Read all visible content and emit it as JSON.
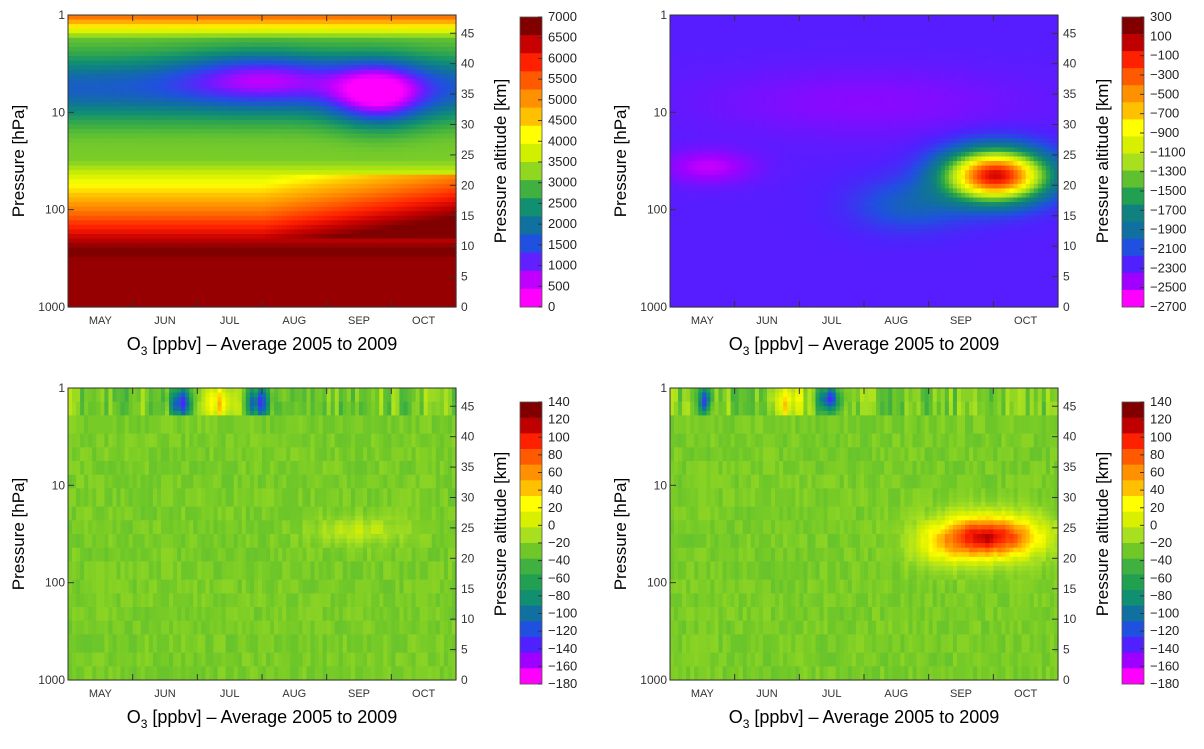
{
  "chart_data": [
    {
      "type": "heatmap",
      "panel": "top-left",
      "title_parts": {
        "species": "O",
        "subscript": "3",
        "rest": " [ppbv] – Average 2005 to 2009"
      },
      "ylabel": "Pressure [hPa]",
      "ylabel_right": "Pressure  altitude [km]",
      "x_categories": [
        "MAY",
        "JUN",
        "JUL",
        "AUG",
        "SEP",
        "OCT"
      ],
      "y_ticks": [
        "1",
        "10",
        "100",
        "1000"
      ],
      "y_right_ticks": [
        "0",
        "5",
        "10",
        "15",
        "20",
        "25",
        "30",
        "35",
        "40",
        "45"
      ],
      "y_scale": "log",
      "colorbar": {
        "ticks": [
          "7000",
          "6500",
          "6000",
          "5500",
          "5000",
          "4500",
          "4000",
          "3500",
          "3000",
          "2500",
          "2000",
          "1500",
          "1000",
          "500",
          "0"
        ],
        "colors": [
          "#800000",
          "#c80000",
          "#ff2000",
          "#ff5a00",
          "#ff9000",
          "#ffc000",
          "#ffff00",
          "#d0f000",
          "#90d820",
          "#40b040",
          "#109070",
          "#1070a0",
          "#2050e0",
          "#6020ff",
          "#c000ff",
          "#ff00ff"
        ]
      }
    },
    {
      "type": "heatmap",
      "panel": "top-right",
      "title_parts": {
        "species": "O",
        "subscript": "3",
        "rest": " [ppbv] – Average 2005 to 2009"
      },
      "ylabel": "Pressure [hPa]",
      "ylabel_right": "Pressure  altitude [km]",
      "x_categories": [
        "MAY",
        "JUN",
        "JUL",
        "AUG",
        "SEP",
        "OCT"
      ],
      "y_ticks": [
        "1",
        "10",
        "100",
        "1000"
      ],
      "y_right_ticks": [
        "0",
        "5",
        "10",
        "15",
        "20",
        "25",
        "30",
        "35",
        "40",
        "45"
      ],
      "y_scale": "log",
      "colorbar": {
        "ticks": [
          "300",
          "100",
          "−100",
          "−300",
          "−500",
          "−700",
          "−900",
          "−1100",
          "−1300",
          "−1500",
          "−1700",
          "−1900",
          "−2100",
          "−2300",
          "−2500",
          "−2700"
        ],
        "colors": [
          "#800000",
          "#c00000",
          "#ff2000",
          "#ff5a00",
          "#ff9000",
          "#ffc000",
          "#ffff00",
          "#d8f000",
          "#a8e020",
          "#60c030",
          "#20a050",
          "#108080",
          "#1070a0",
          "#2050e0",
          "#5020ff",
          "#a000ff",
          "#ff00ff"
        ]
      }
    },
    {
      "type": "heatmap",
      "panel": "bottom-left",
      "title_parts": {
        "species": "O",
        "subscript": "3",
        "rest": " [ppbv] – Average 2005 to 2009"
      },
      "ylabel": "Pressure [hPa]",
      "ylabel_right": "Pressure  altitude [km]",
      "x_categories": [
        "MAY",
        "JUN",
        "JUL",
        "AUG",
        "SEP",
        "OCT"
      ],
      "y_ticks": [
        "1",
        "10",
        "100",
        "1000"
      ],
      "y_right_ticks": [
        "0",
        "5",
        "10",
        "15",
        "20",
        "25",
        "30",
        "35",
        "40",
        "45"
      ],
      "y_scale": "log",
      "colorbar": {
        "ticks": [
          "140",
          "120",
          "100",
          "80",
          "60",
          "40",
          "20",
          "0",
          "−20",
          "−40",
          "−60",
          "−80",
          "−100",
          "−120",
          "−140",
          "−160",
          "−180"
        ],
        "colors": [
          "#800000",
          "#c00000",
          "#ff2000",
          "#ff5a00",
          "#ff9000",
          "#ffc000",
          "#ffff00",
          "#d8f000",
          "#a8e020",
          "#70c828",
          "#40b040",
          "#20a050",
          "#109070",
          "#1070a0",
          "#2050e0",
          "#5020ff",
          "#a000ff",
          "#ff00ff"
        ]
      }
    },
    {
      "type": "heatmap",
      "panel": "bottom-right",
      "title_parts": {
        "species": "O",
        "subscript": "3",
        "rest": " [ppbv] – Average 2005 to 2009"
      },
      "ylabel": "Pressure [hPa]",
      "ylabel_right": "Pressure  altitude [km]",
      "x_categories": [
        "MAY",
        "JUN",
        "JUL",
        "AUG",
        "SEP",
        "OCT"
      ],
      "y_ticks": [
        "1",
        "10",
        "100",
        "1000"
      ],
      "y_right_ticks": [
        "0",
        "5",
        "10",
        "15",
        "20",
        "25",
        "30",
        "35",
        "40",
        "45"
      ],
      "y_scale": "log",
      "colorbar": {
        "ticks": [
          "140",
          "120",
          "100",
          "80",
          "60",
          "40",
          "20",
          "0",
          "−20",
          "−40",
          "−60",
          "−80",
          "−100",
          "−120",
          "−140",
          "−160",
          "−180"
        ],
        "colors": [
          "#800000",
          "#c00000",
          "#ff2000",
          "#ff5a00",
          "#ff9000",
          "#ffc000",
          "#ffff00",
          "#d8f000",
          "#a8e020",
          "#70c828",
          "#40b040",
          "#20a050",
          "#109070",
          "#1070a0",
          "#2050e0",
          "#5020ff",
          "#a000ff",
          "#ff00ff"
        ]
      }
    }
  ]
}
